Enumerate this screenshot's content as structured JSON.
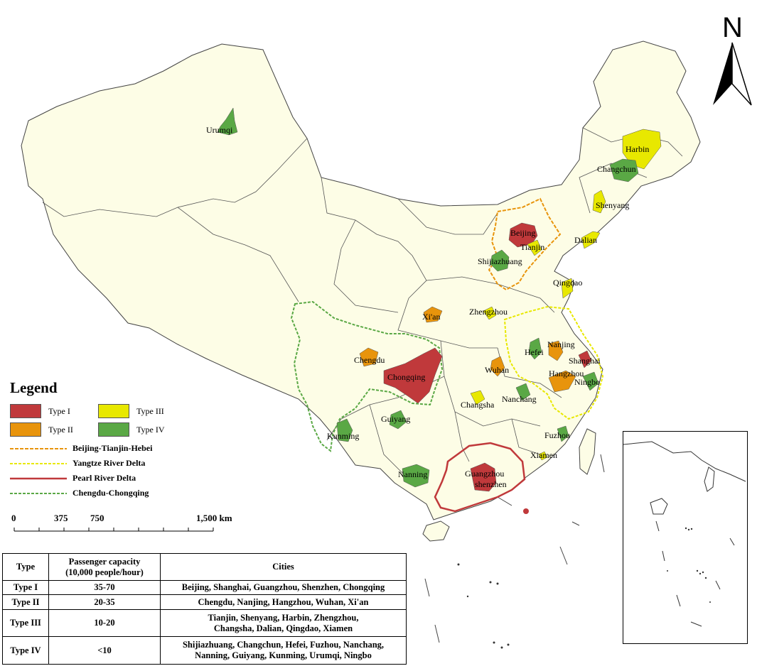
{
  "north_arrow": {
    "label": "N"
  },
  "legend": {
    "title": "Legend",
    "types": [
      {
        "label": "Type I",
        "color": "#c0393b"
      },
      {
        "label": "Type II",
        "color": "#e8940c"
      },
      {
        "label": "Type III",
        "color": "#e8e800"
      },
      {
        "label": "Type IV",
        "color": "#5aa845"
      }
    ],
    "regions": [
      {
        "label": "Beijing-Tianjin-Hebei",
        "color": "#e8940c"
      },
      {
        "label": "Yangtze River Delta",
        "color": "#e8e800"
      },
      {
        "label": "Pearl River Delta",
        "color": "#c0393b"
      },
      {
        "label": "Chengdu-Chongqing",
        "color": "#5aa845"
      }
    ]
  },
  "scale": {
    "labels": [
      "0",
      "375",
      "750",
      "1,500 km"
    ]
  },
  "cities": [
    {
      "name": "Urumqi",
      "type": "IV"
    },
    {
      "name": "Harbin",
      "type": "III"
    },
    {
      "name": "Changchun",
      "type": "IV"
    },
    {
      "name": "Shenyang",
      "type": "III"
    },
    {
      "name": "Dalian",
      "type": "III"
    },
    {
      "name": "Beijing",
      "type": "I"
    },
    {
      "name": "Tianjin",
      "type": "III"
    },
    {
      "name": "Shijiazhuang",
      "type": "IV"
    },
    {
      "name": "Qingdao",
      "type": "III"
    },
    {
      "name": "Xi'an",
      "type": "II"
    },
    {
      "name": "Zhengzhou",
      "type": "III"
    },
    {
      "name": "Chengdu",
      "type": "II"
    },
    {
      "name": "Chongqing",
      "type": "I"
    },
    {
      "name": "Nanjing",
      "type": "II"
    },
    {
      "name": "Hefei",
      "type": "IV"
    },
    {
      "name": "Shanghai",
      "type": "I"
    },
    {
      "name": "Hangzhou",
      "type": "II"
    },
    {
      "name": "Ningbo",
      "type": "IV"
    },
    {
      "name": "Wuhan",
      "type": "II"
    },
    {
      "name": "Changsha",
      "type": "III"
    },
    {
      "name": "Nanchang",
      "type": "IV"
    },
    {
      "name": "Guiyang",
      "type": "IV"
    },
    {
      "name": "Kunming",
      "type": "IV"
    },
    {
      "name": "Fuzhou",
      "type": "IV"
    },
    {
      "name": "Xiamen",
      "type": "III"
    },
    {
      "name": "Nanning",
      "type": "IV"
    },
    {
      "name": "Guangzhou",
      "type": "I"
    },
    {
      "name": "Shenzhen",
      "type": "I"
    }
  ],
  "table": {
    "headers": [
      "Type",
      "Passenger capacity\n(10,000 people/hour)",
      "Cities"
    ],
    "rows": [
      {
        "type": "Type I",
        "capacity": "35-70",
        "cities": "Beijing, Shanghai, Guangzhou, Shenzhen, Chongqing"
      },
      {
        "type": "Type II",
        "capacity": "20-35",
        "cities": "Chengdu, Nanjing, Hangzhou, Wuhan, Xi'an"
      },
      {
        "type": "Type III",
        "capacity": "10-20",
        "cities": "Tianjin, Shenyang, Harbin, Zhengzhou,\nChangsha, Dalian, Qingdao, Xiamen"
      },
      {
        "type": "Type IV",
        "capacity": "<10",
        "cities": "Shijiazhuang, Changchun, Hefei, Fuzhou, Nanchang,\nNanning, Guiyang, Kunming, Urumqi, Ningbo"
      }
    ]
  }
}
